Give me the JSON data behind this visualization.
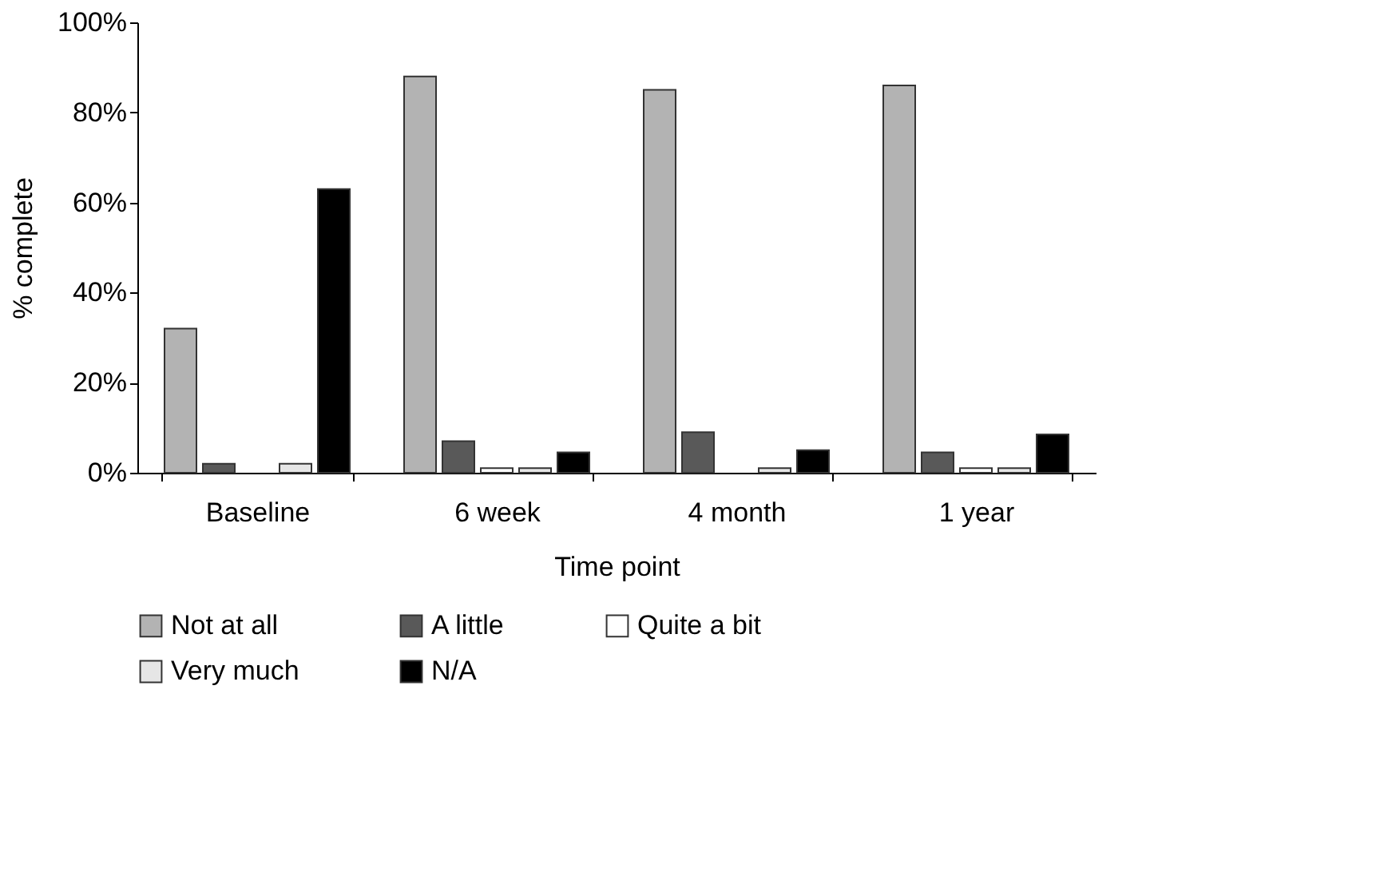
{
  "chart_data": {
    "type": "bar",
    "xlabel": "Time point",
    "ylabel": "% complete",
    "categories": [
      "Baseline",
      "6 week",
      "4 month",
      "1 year"
    ],
    "series": [
      {
        "name": "Not at all",
        "color": "#b3b3b3",
        "values": [
          32,
          88,
          85,
          86
        ]
      },
      {
        "name": "A little",
        "color": "#595959",
        "values": [
          2,
          7,
          9,
          4.5
        ]
      },
      {
        "name": "Quite a bit",
        "color": "#ffffff",
        "values": [
          null,
          1,
          null,
          1
        ]
      },
      {
        "name": "Very much",
        "color": "#e6e6e6",
        "values": [
          2,
          1,
          1,
          1
        ]
      },
      {
        "name": "N/A",
        "color": "#000000",
        "values": [
          63,
          4.5,
          5,
          8.5
        ]
      }
    ],
    "ylim": [
      0,
      100
    ],
    "yticks": [
      {
        "value": 0,
        "label": "0%"
      },
      {
        "value": 20,
        "label": "20%"
      },
      {
        "value": 40,
        "label": "40%"
      },
      {
        "value": 60,
        "label": "60%"
      },
      {
        "value": 80,
        "label": "80%"
      },
      {
        "value": 100,
        "label": "100%"
      }
    ],
    "grid": false,
    "legend": "bottom"
  }
}
